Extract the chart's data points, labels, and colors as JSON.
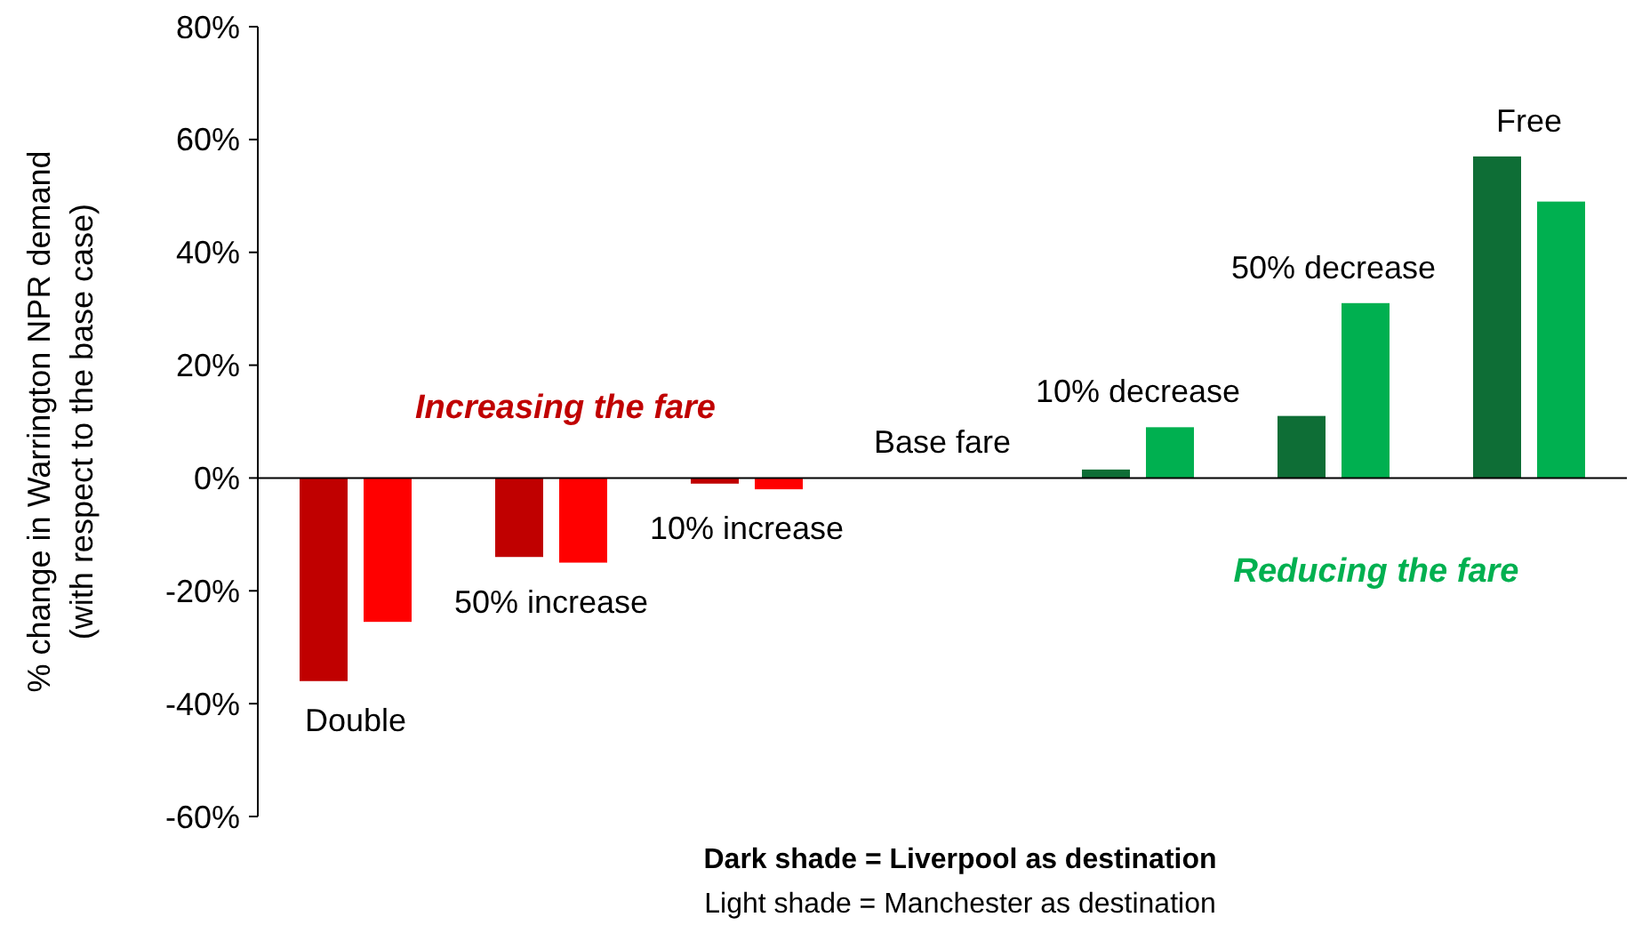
{
  "chart_data": {
    "type": "bar",
    "ylabel": "% change in Warrington NPR demand\n(with respect to the base case)",
    "categories": [
      "Double",
      "50% increase",
      "10% increase",
      "Base fare",
      "10% decrease",
      "50% decrease",
      "Free"
    ],
    "series": [
      {
        "colors": [
          "#c00000",
          "#c00000",
          "#c00000",
          "#c00000",
          "#0e6e36",
          "#0e6e36",
          "#0e6e36"
        ],
        "values": [
          -36,
          -14,
          -1,
          0,
          1.5,
          11,
          57
        ]
      },
      {
        "colors": [
          "#ff0000",
          "#ff0000",
          "#ff0000",
          "#ff0000",
          "#00b050",
          "#00b050",
          "#00b050"
        ],
        "values": [
          -25.5,
          -15,
          -2,
          0,
          9,
          31,
          49
        ]
      }
    ],
    "ylim": [
      -60,
      80
    ],
    "yticks": [
      {
        "value": -60,
        "label": "-60%"
      },
      {
        "value": -40,
        "label": "-40%"
      },
      {
        "value": -20,
        "label": "-20%"
      },
      {
        "value": 0,
        "label": "0%"
      },
      {
        "value": 20,
        "label": "20%"
      },
      {
        "value": 40,
        "label": "40%"
      },
      {
        "value": 60,
        "label": "60%"
      },
      {
        "value": 80,
        "label": "80%"
      }
    ],
    "annotations": [
      "Increasing the fare",
      "Reducing the fare",
      "Dark shade = Liverpool as destination",
      "Light shade = Manchester as destination"
    ]
  }
}
